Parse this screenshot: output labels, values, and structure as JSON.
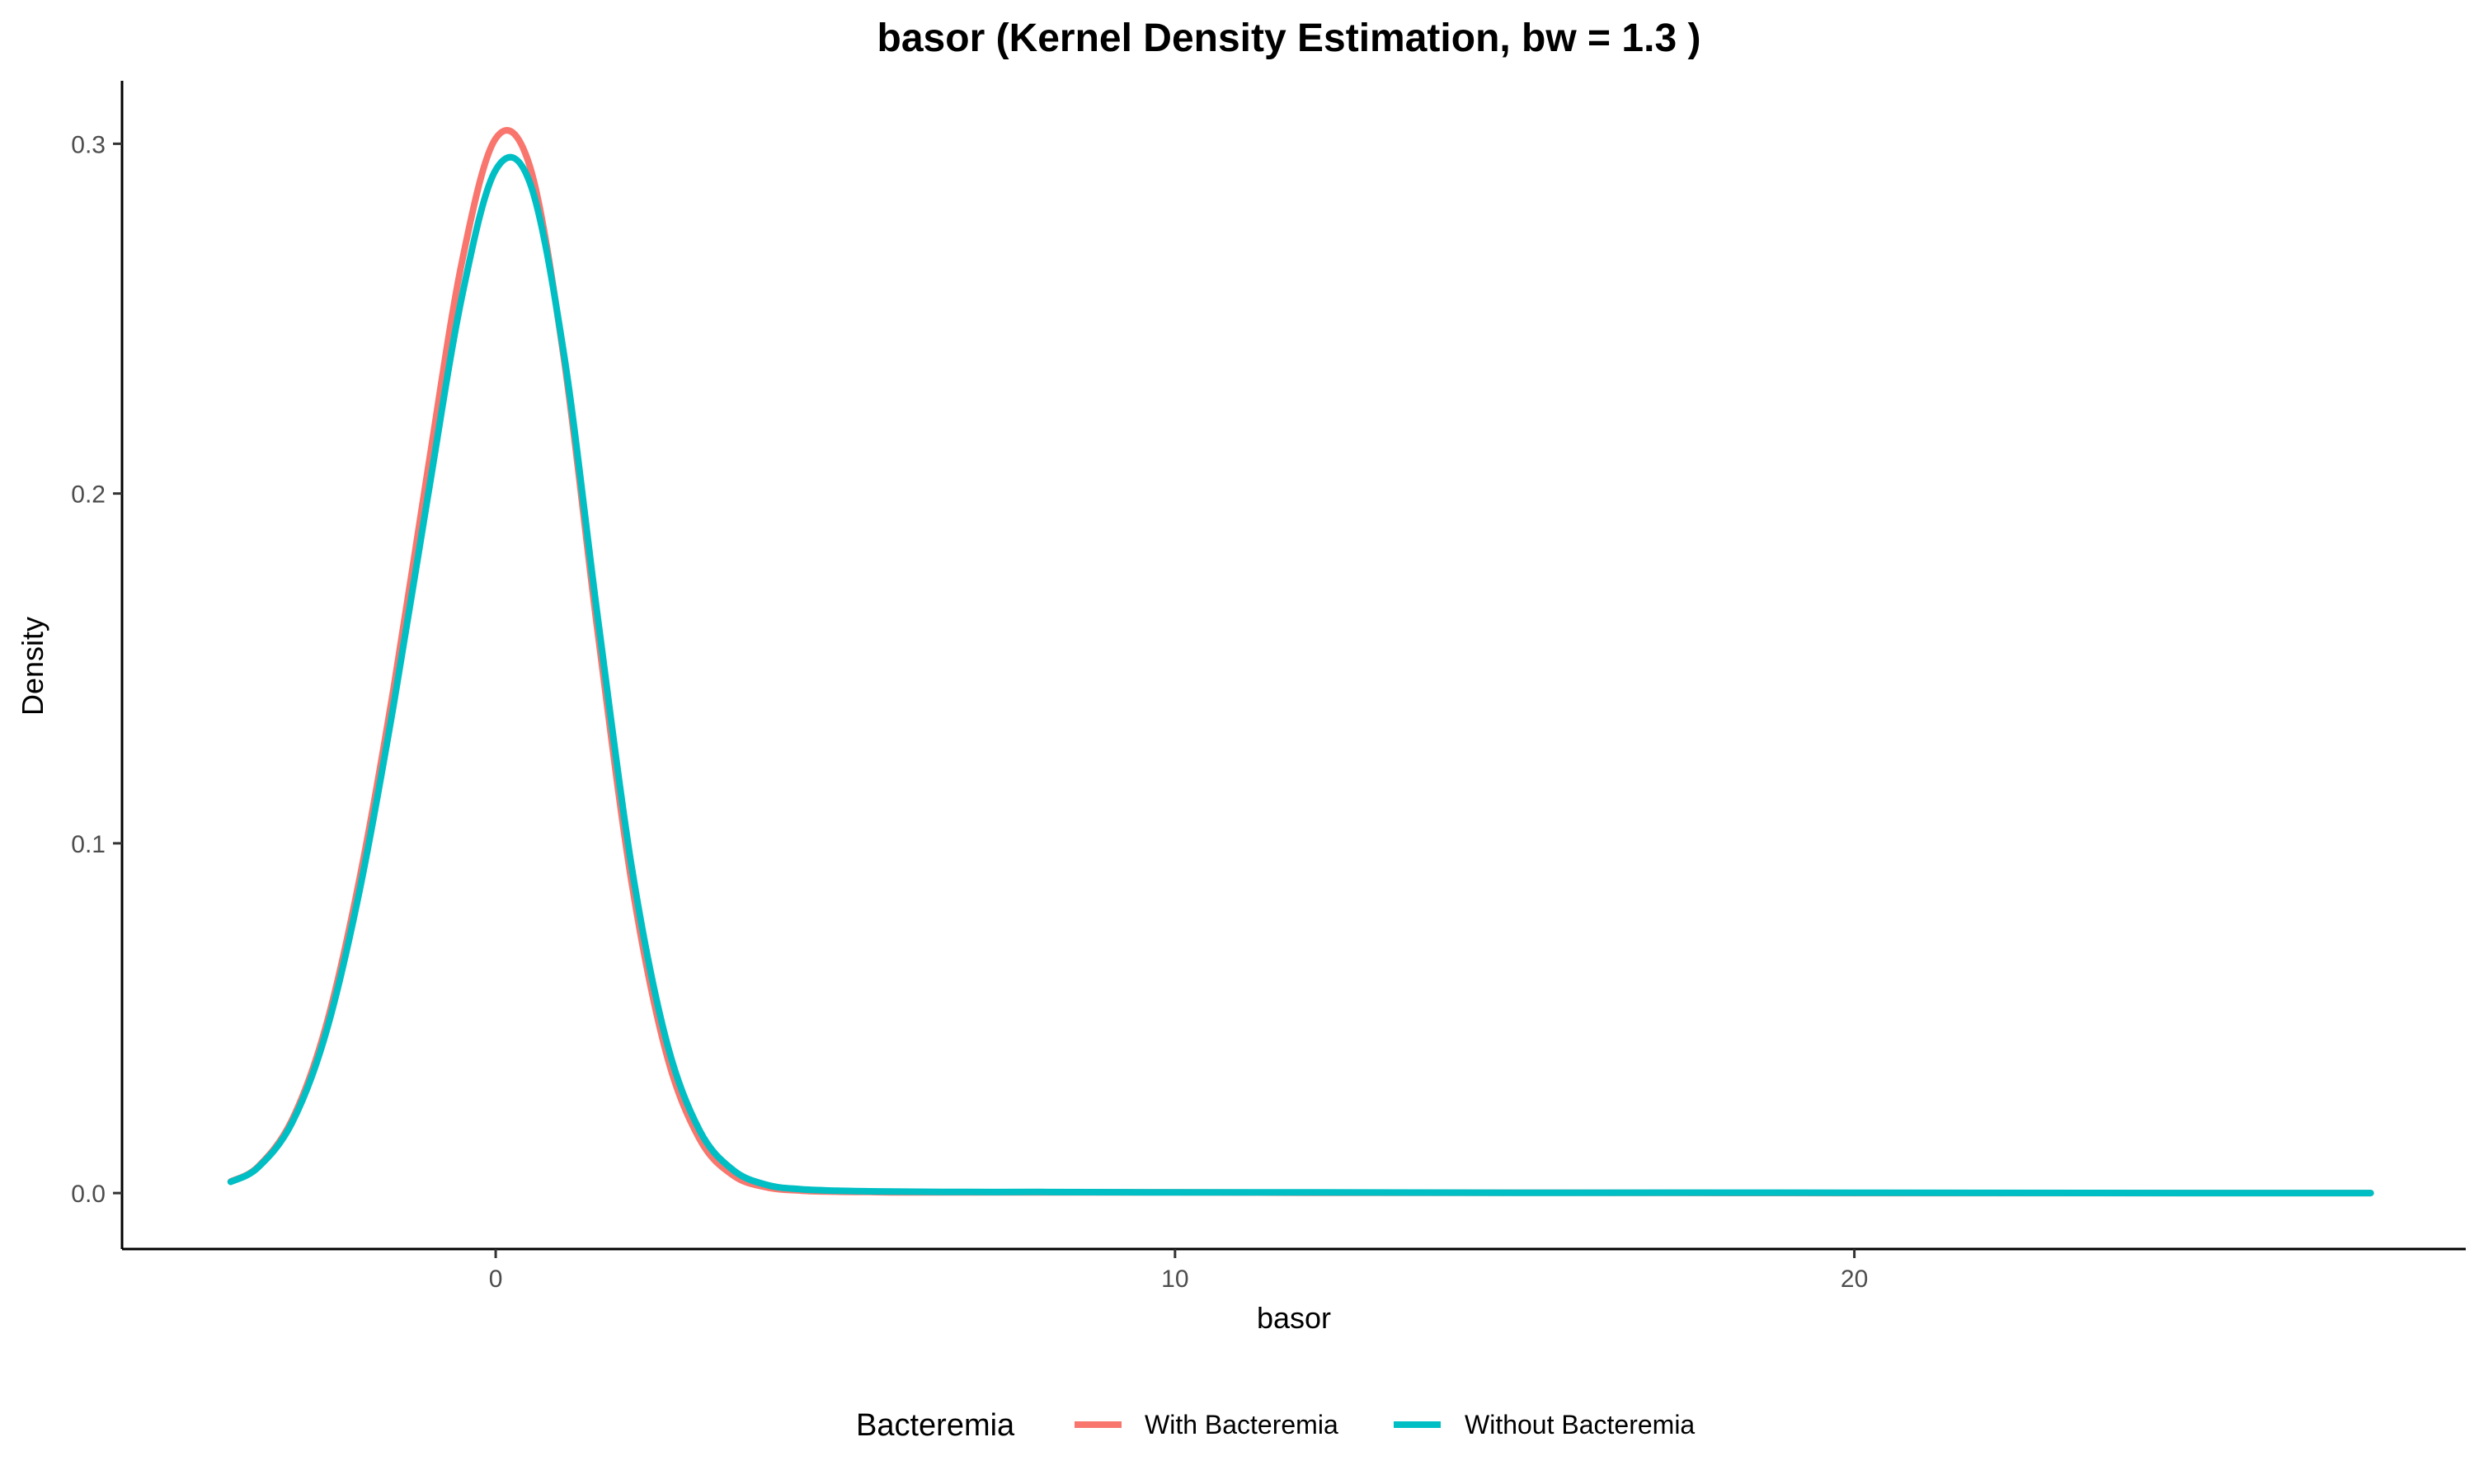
{
  "chart_data": {
    "type": "line",
    "title": "basor (Kernel Density Estimation, bw = 1.3 )",
    "xlabel": "basor",
    "ylabel": "Density",
    "xlim": [
      -5.5,
      29
    ],
    "ylim": [
      -0.016,
      0.318
    ],
    "xticks": [
      0,
      10,
      20
    ],
    "xtick_labels": [
      "0",
      "10",
      "20"
    ],
    "yticks": [
      0.0,
      0.1,
      0.2,
      0.3
    ],
    "ytick_labels": [
      "0.0",
      "0.1",
      "0.2",
      "0.3"
    ],
    "grid": false,
    "legend": {
      "title": "Bacteremia",
      "position": "bottom"
    },
    "x": [
      -3.9,
      -3.5,
      -3.0,
      -2.5,
      -2.0,
      -1.5,
      -1.0,
      -0.5,
      0.0,
      0.5,
      1.0,
      1.5,
      2.0,
      2.5,
      3.0,
      3.5,
      4.0,
      4.5,
      5.0,
      5.5,
      6.0,
      7.0,
      8.0,
      10.0,
      12.0,
      15.0,
      20.0,
      25.0,
      27.6
    ],
    "series": [
      {
        "name": "With Bacteremia",
        "color": "#F8766D",
        "values": [
          0.0033,
          0.0075,
          0.0208,
          0.0476,
          0.0902,
          0.1446,
          0.2067,
          0.2659,
          0.3015,
          0.2937,
          0.2393,
          0.1607,
          0.089,
          0.0408,
          0.0155,
          0.005,
          0.0016,
          0.0007,
          0.0004,
          0.0003,
          0.0002,
          0.0002,
          0.0002,
          0.0002,
          0.0001,
          0.0001,
          0.0,
          0.0,
          0.0
        ]
      },
      {
        "name": "Without Bacteremia",
        "color": "#00BFC4",
        "values": [
          0.0032,
          0.0073,
          0.02,
          0.0457,
          0.0868,
          0.1398,
          0.199,
          0.256,
          0.2925,
          0.289,
          0.2405,
          0.165,
          0.0935,
          0.0445,
          0.018,
          0.0065,
          0.0023,
          0.0011,
          0.0007,
          0.0005,
          0.0004,
          0.0003,
          0.0003,
          0.0002,
          0.0002,
          0.0001,
          0.0001,
          0.0,
          0.0
        ]
      }
    ]
  }
}
